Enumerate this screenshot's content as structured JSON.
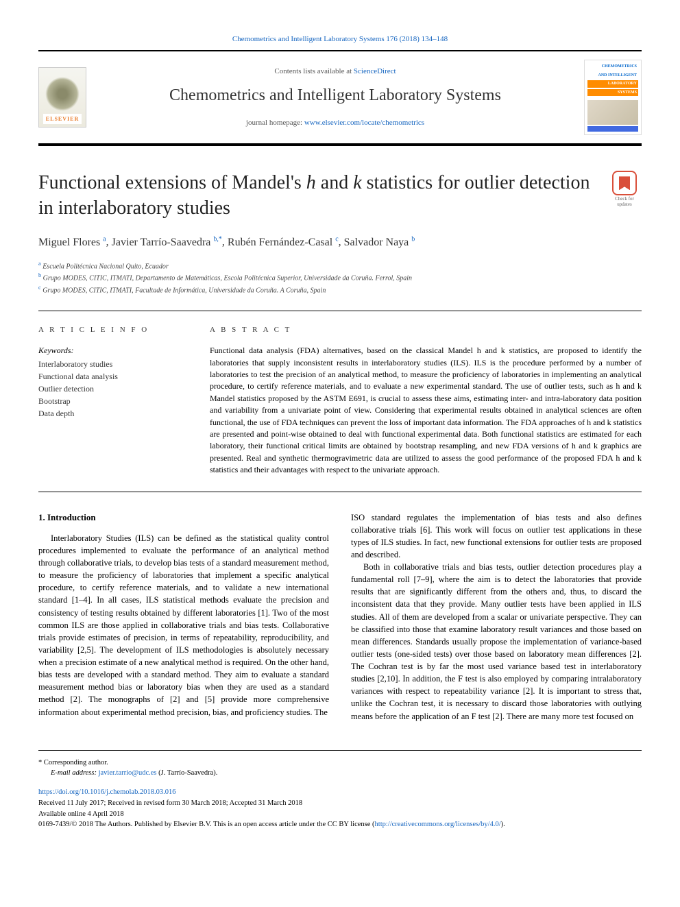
{
  "top_citation": "Chemometrics and Intelligent Laboratory Systems 176 (2018) 134–148",
  "header": {
    "contents_prefix": "Contents lists available at ",
    "contents_link": "ScienceDirect",
    "journal_name": "Chemometrics and Intelligent Laboratory Systems",
    "homepage_prefix": "journal homepage: ",
    "homepage_link": "www.elsevier.com/locate/chemometrics",
    "elsevier_label": "ELSEVIER",
    "cover_lines": [
      "CHEMOMETRICS",
      "AND INTELLIGENT",
      "LABORATORY",
      "SYSTEMS"
    ]
  },
  "check_updates": {
    "line1": "Check for",
    "line2": "updates"
  },
  "title": {
    "part1": "Functional extensions of Mandel's ",
    "h": "h",
    "and": " and ",
    "k": "k",
    "part2": " statistics for outlier detection in interlaboratory studies"
  },
  "authors": [
    {
      "name": "Miguel Flores",
      "aff": "a"
    },
    {
      "name": "Javier Tarrío-Saavedra",
      "aff": "b,*"
    },
    {
      "name": "Rubén Fernández-Casal",
      "aff": "c"
    },
    {
      "name": "Salvador Naya",
      "aff": "b"
    }
  ],
  "affiliations": [
    {
      "sup": "a",
      "text": "Escuela Politécnica Nacional Quito, Ecuador"
    },
    {
      "sup": "b",
      "text": "Grupo MODES, CITIC, ITMATI, Departamento de Matemáticas, Escola Politécnica Superior, Universidade da Coruña. Ferrol, Spain"
    },
    {
      "sup": "c",
      "text": "Grupo MODES, CITIC, ITMATI, Facultade de Informática, Universidade da Coruña. A Coruña, Spain"
    }
  ],
  "article_info": {
    "heading": "A R T I C L E   I N F O",
    "keywords_label": "Keywords:",
    "keywords": [
      "Interlaboratory studies",
      "Functional data analysis",
      "Outlier detection",
      "Bootstrap",
      "Data depth"
    ]
  },
  "abstract": {
    "heading": "A B S T R A C T",
    "text": "Functional data analysis (FDA) alternatives, based on the classical Mandel h and k statistics, are proposed to identify the laboratories that supply inconsistent results in interlaboratory studies (ILS). ILS is the procedure performed by a number of laboratories to test the precision of an analytical method, to measure the proficiency of laboratories in implementing an analytical procedure, to certify reference materials, and to evaluate a new experimental standard. The use of outlier tests, such as h and k Mandel statistics proposed by the ASTM E691, is crucial to assess these aims, estimating inter- and intra-laboratory data position and variability from a univariate point of view. Considering that experimental results obtained in analytical sciences are often functional, the use of FDA techniques can prevent the loss of important data information. The FDA approaches of h and k statistics are presented and point-wise obtained to deal with functional experimental data. Both functional statistics are estimated for each laboratory, their functional critical limits are obtained by bootstrap resampling, and new FDA versions of h and k graphics are presented. Real and synthetic thermogravimetric data are utilized to assess the good performance of the proposed FDA h and k statistics and their advantages with respect to the univariate approach."
  },
  "body": {
    "intro_heading": "1.  Introduction",
    "col1": "Interlaboratory Studies (ILS) can be defined as the statistical quality control procedures implemented to evaluate the performance of an analytical method through collaborative trials, to develop bias tests of a standard measurement method, to measure the proficiency of laboratories that implement a specific analytical procedure, to certify reference materials, and to validate a new international standard [1–4]. In all cases, ILS statistical methods evaluate the precision and consistency of testing results obtained by different laboratories [1]. Two of the most common ILS are those applied in collaborative trials and bias tests. Collaborative trials provide estimates of precision, in terms of repeatability, reproducibility, and variability [2,5]. The development of ILS methodologies is absolutely necessary when a precision estimate of a new analytical method is required. On the other hand, bias tests are developed with a standard method. They aim to evaluate a standard measurement method bias or laboratory bias when they are used as a standard method [2]. The monographs of [2] and [5] provide more comprehensive information about experimental method precision, bias, and proficiency studies. The",
    "col2_p1": "ISO standard regulates the implementation of bias tests and also defines collaborative trials [6]. This work will focus on outlier test applications in these types of ILS studies. In fact, new functional extensions for outlier tests are proposed and described.",
    "col2_p2": "Both in collaborative trials and bias tests, outlier detection procedures play a fundamental roll [7–9], where the aim is to detect the laboratories that provide results that are significantly different from the others and, thus, to discard the inconsistent data that they provide. Many outlier tests have been applied in ILS studies. All of them are developed from a scalar or univariate perspective. They can be classified into those that examine laboratory result variances and those based on mean differences. Standards usually propose the implementation of variance-based outlier tests (one-sided tests) over those based on laboratory mean differences [2]. The Cochran test is by far the most used variance based test in interlaboratory studies [2,10]. In addition, the F test is also employed by comparing intralaboratory variances with respect to repeatability variance [2]. It is important to stress that, unlike the Cochran test, it is necessary to discard those laboratories with outlying means before the application of an F test [2]. There are many more test focused on"
  },
  "footer": {
    "corresponding": "* Corresponding author.",
    "email_label": "E-mail address: ",
    "email": "javier.tarrio@udc.es",
    "email_suffix": " (J. Tarrío-Saavedra).",
    "doi": "https://doi.org/10.1016/j.chemolab.2018.03.016",
    "received": "Received 11 July 2017; Received in revised form 30 March 2018; Accepted 31 March 2018",
    "available": "Available online 4 April 2018",
    "copyright_prefix": "0169-7439/© 2018 The Authors. Published by Elsevier B.V. This is an open access article under the CC BY license (",
    "license_link": "http://creativecommons.org/licenses/by/4.0/",
    "copyright_suffix": ")."
  }
}
